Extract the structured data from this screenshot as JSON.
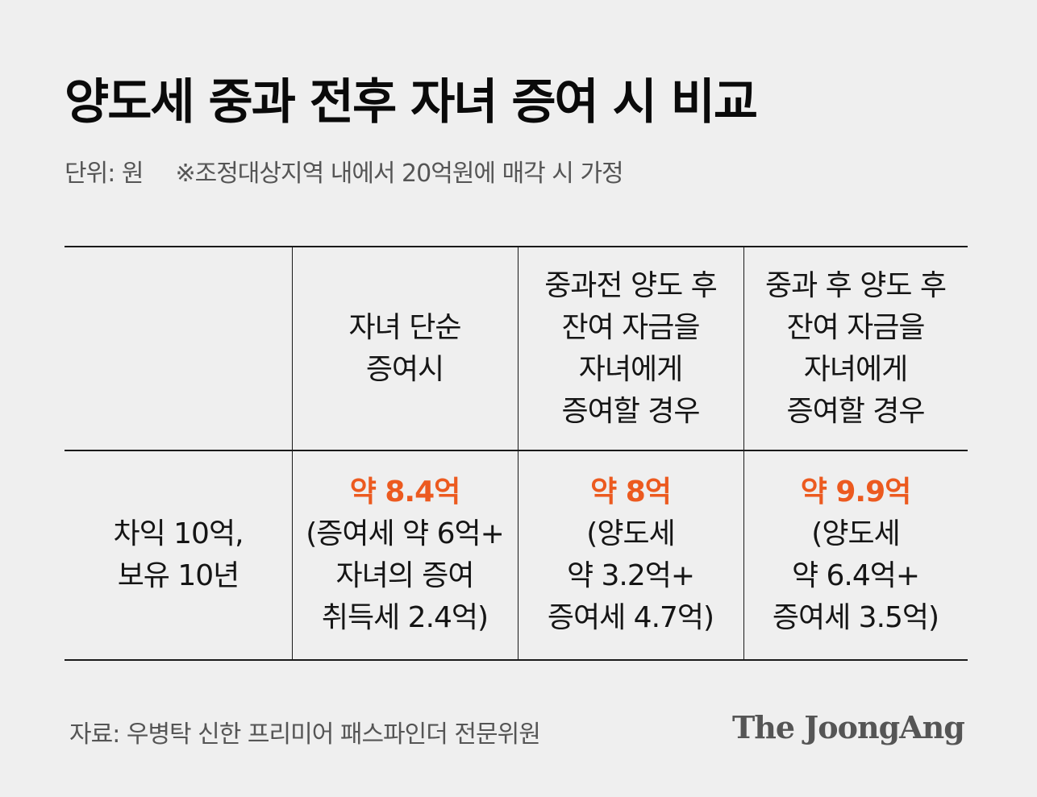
{
  "title": "양도세 중과 전후 자녀 증여 시 비교",
  "unit": "단위: 원",
  "note": "※조정대상지역 내에서 20억원에 매각 시 가정",
  "table": {
    "headers": [
      [],
      [
        "자녀 단순",
        "증여시"
      ],
      [
        "중과전 양도 후",
        "잔여 자금을",
        "자녀에게",
        "증여할 경우"
      ],
      [
        "중과 후 양도 후",
        "잔여 자금을",
        "자녀에게",
        "증여할 경우"
      ]
    ],
    "row_label": [
      "차익 10억,",
      "보유 10년"
    ],
    "cells": [
      {
        "total": "약 8.4억",
        "detail": [
          "(증여세 약 6억+",
          "자녀의 증여",
          "취득세 2.4억)"
        ]
      },
      {
        "total": "약 8억",
        "detail": [
          "(양도세",
          "약 3.2억+",
          "증여세 4.7억)"
        ]
      },
      {
        "total": "약 9.9억",
        "detail": [
          "(양도세",
          "약 6.4억+",
          "증여세 3.5억)"
        ]
      }
    ]
  },
  "source": "자료: 우병탁 신한 프리미어 패스파인더 전문위원",
  "logo": "The JoongAng",
  "colors": {
    "accent": "#ec5a1f",
    "background": "#efefef"
  }
}
